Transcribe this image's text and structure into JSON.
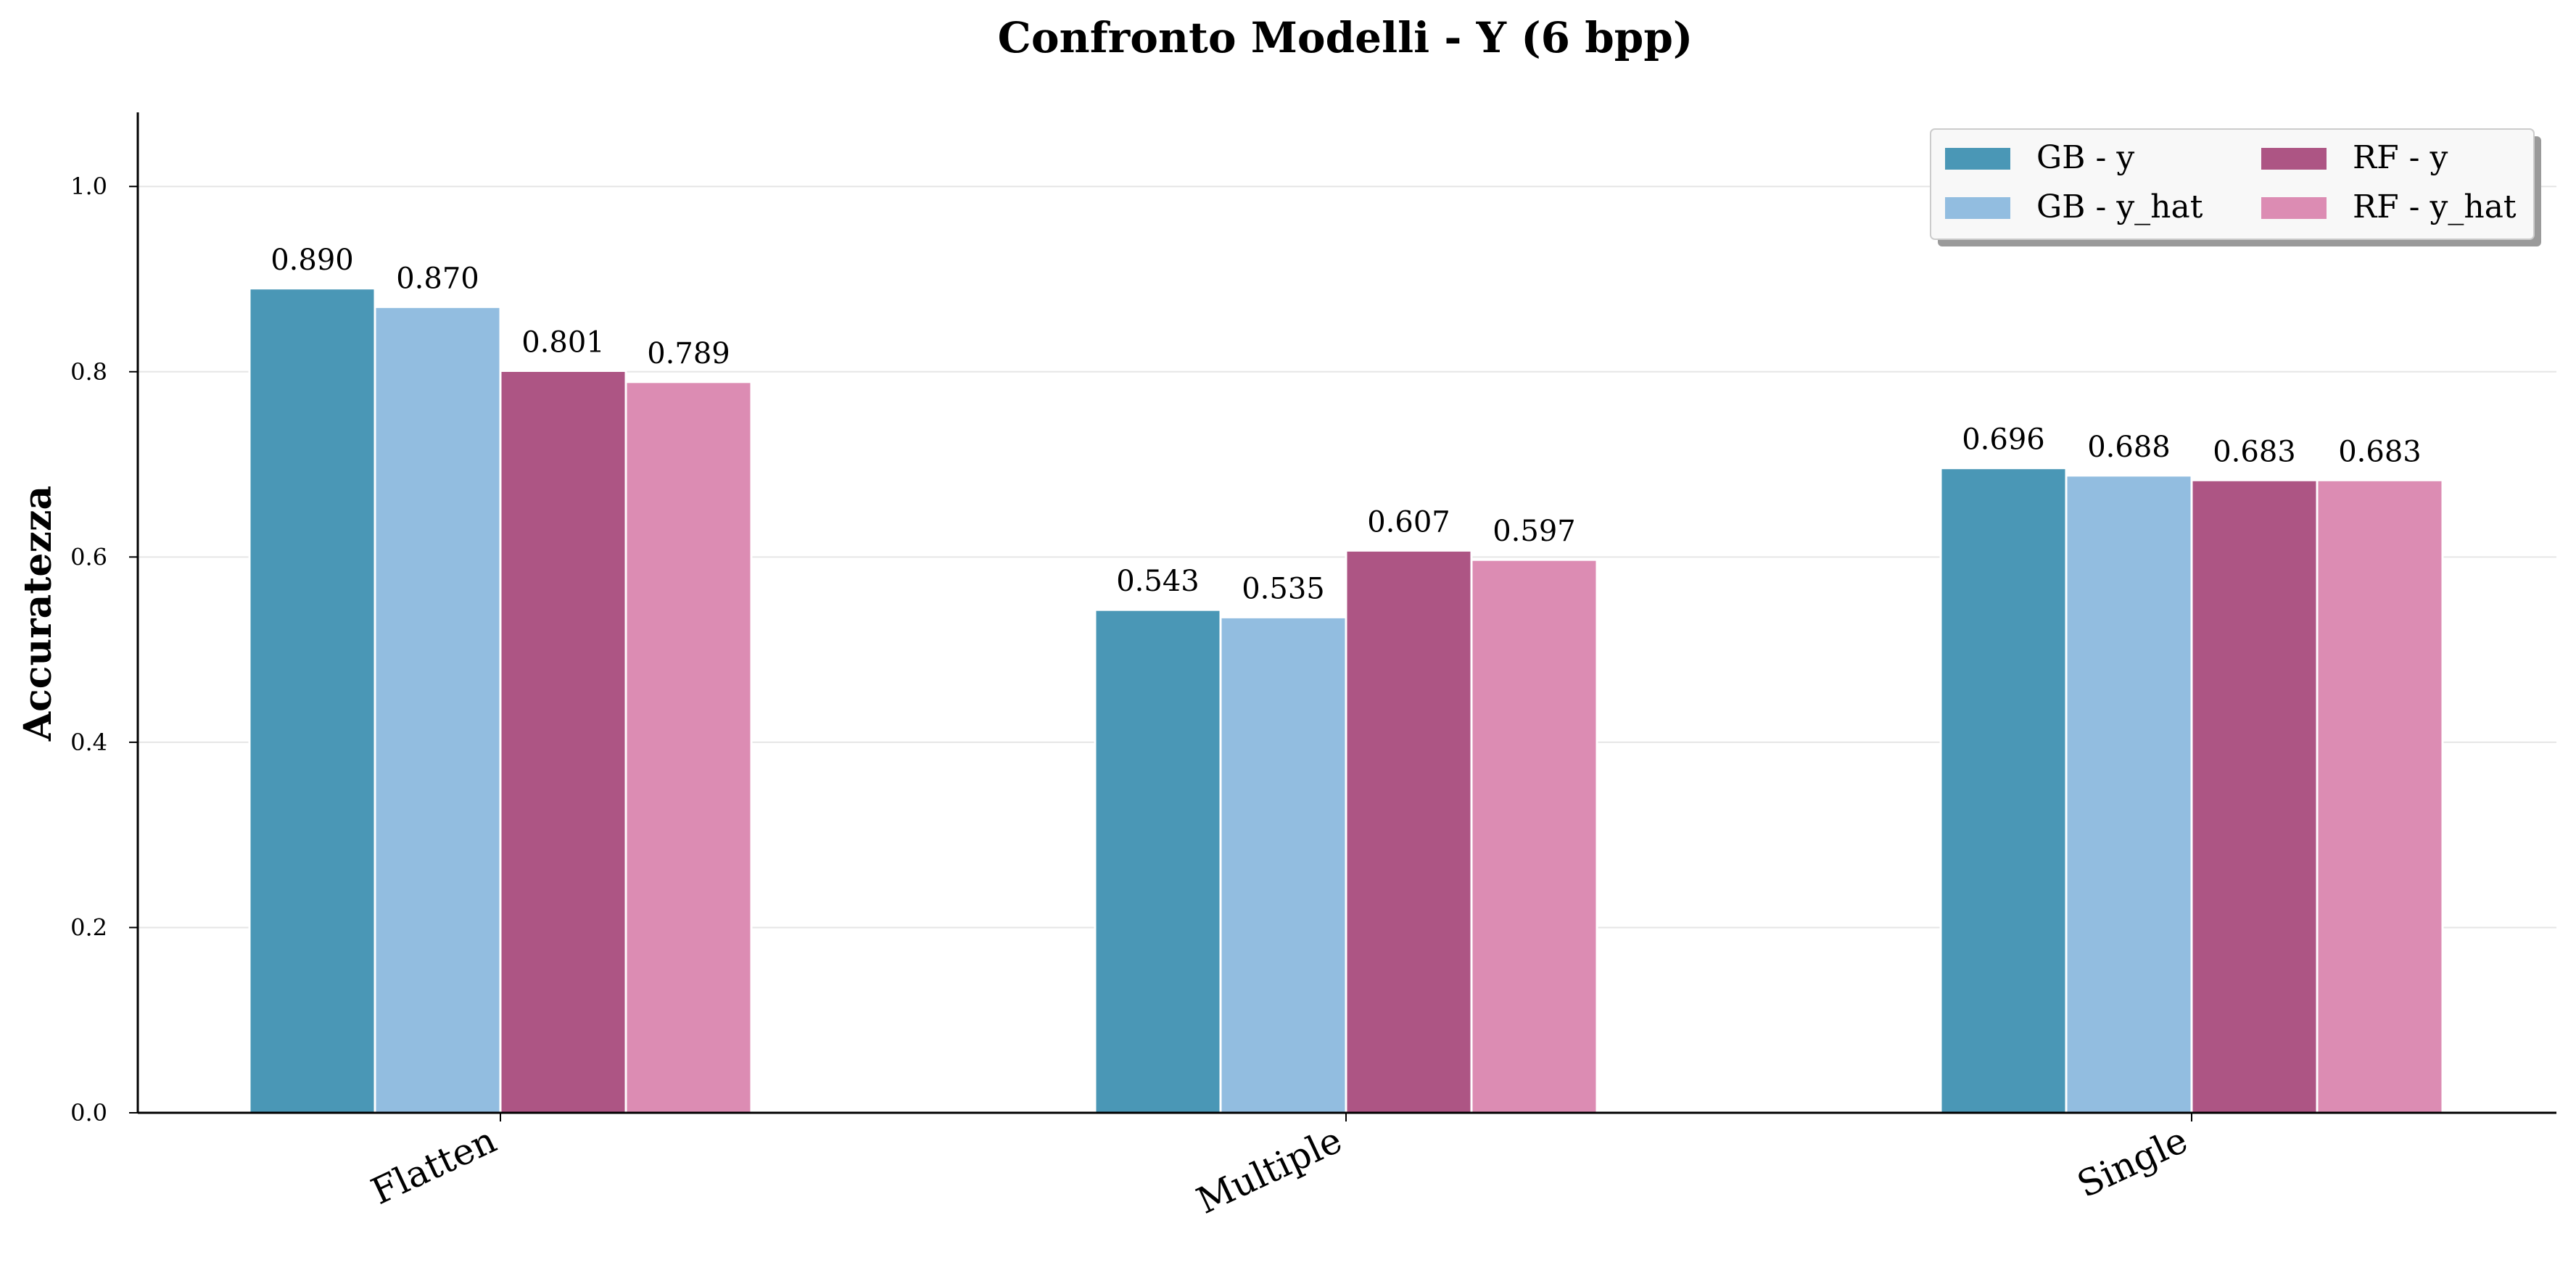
{
  "chart_data": {
    "type": "bar",
    "title": "Confronto Modelli - Y (6 bpp)",
    "xlabel": "",
    "ylabel": "Accuratezza",
    "ylim": [
      0,
      1.08
    ],
    "yticks": [
      "0.0",
      "0.2",
      "0.4",
      "0.6",
      "0.8",
      "1.0"
    ],
    "categories": [
      "Flatten",
      "Multiple",
      "Single"
    ],
    "grid": "y",
    "legend_position": "top-right",
    "series": [
      {
        "name": "GB - y",
        "color": "#4a97b6",
        "values": [
          0.89,
          0.543,
          0.696
        ],
        "labels": [
          "0.890",
          "0.543",
          "0.696"
        ]
      },
      {
        "name": "GB - y_hat",
        "color": "#92bde0",
        "values": [
          0.87,
          0.535,
          0.688
        ],
        "labels": [
          "0.870",
          "0.535",
          "0.688"
        ]
      },
      {
        "name": "RF - y",
        "color": "#ad5584",
        "values": [
          0.801,
          0.607,
          0.683
        ],
        "labels": [
          "0.801",
          "0.607",
          "0.683"
        ]
      },
      {
        "name": "RF - y_hat",
        "color": "#dc8cb3",
        "values": [
          0.789,
          0.597,
          0.683
        ],
        "labels": [
          "0.789",
          "0.597",
          "0.683"
        ]
      }
    ]
  }
}
